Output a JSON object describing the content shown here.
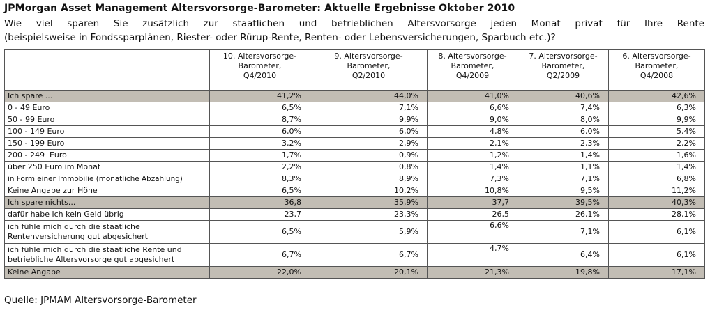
{
  "title": "JPMorgan Asset Management Altersvorsorge-Barometer: Aktuelle Ergebnisse Oktober 2010",
  "question_line1": "Wie viel sparen Sie zusätzlich zur staatlichen und betrieblichen Altersvorsorge jeden Monat privat für Ihre Rente",
  "question_line2": "(beispielsweise in Fondssparplänen, Riester- oder Rürup-Rente, Renten- oder Lebensversicherungen, Sparbuch etc.)?",
  "columns": [
    {
      "line1": "10. Altersvorsorge-",
      "line2": "Barometer,",
      "line3": "Q4/2010"
    },
    {
      "line1": "9. Altersvorsorge-",
      "line2": "Barometer,",
      "line3": "Q2/2010"
    },
    {
      "line1": "8. Altersvorsorge-",
      "line2": "Barometer,",
      "line3": "Q4/2009"
    },
    {
      "line1": "7. Altersvorsorge-",
      "line2": "Barometer,",
      "line3": "Q2/2009"
    },
    {
      "line1": "6. Altersvorsorge-",
      "line2": "Barometer,",
      "line3": "Q4/2008"
    }
  ],
  "rows": [
    {
      "label": "Ich spare ...",
      "values": [
        "41,2%",
        "44,0%",
        "41,0%",
        "40,6%",
        "42,6%"
      ]
    },
    {
      "label": "0 - 49 Euro",
      "values": [
        "6,5%",
        "7,1%",
        "6,6%",
        "7,4%",
        "6,3%"
      ]
    },
    {
      "label": "50 - 99 Euro",
      "values": [
        "8,7%",
        "9,9%",
        "9,0%",
        "8,0%",
        "9,9%"
      ]
    },
    {
      "label": "100 - 149 Euro",
      "values": [
        "6,0%",
        "6,0%",
        "4,8%",
        "6,0%",
        "5,4%"
      ]
    },
    {
      "label": "150 - 199 Euro",
      "values": [
        "3,2%",
        "2,9%",
        "2,1%",
        "2,3%",
        "2,2%"
      ]
    },
    {
      "label": "200 - 249  Euro",
      "values": [
        "1,7%",
        "0,9%",
        "1,2%",
        "1,4%",
        "1,6%"
      ]
    },
    {
      "label": "über 250 Euro im Monat",
      "values": [
        "2,2%",
        "0,8%",
        "1,4%",
        "1,1%",
        "1,4%"
      ]
    },
    {
      "label": "in Form einer Immobilie (monatliche Abzahlung)",
      "values": [
        "8,3%",
        "8,9%",
        "7,3%",
        "7,1%",
        "6,8%"
      ]
    },
    {
      "label": "Keine Angabe zur Höhe",
      "values": [
        "6,5%",
        "10,2%",
        "10,8%",
        "9,5%",
        "11,2%"
      ]
    },
    {
      "label": "Ich spare nichts...",
      "values": [
        "36,8",
        "35,9%",
        "37,7",
        "39,5%",
        "40,3%"
      ]
    },
    {
      "label": "dafür habe ich kein Geld übrig",
      "values": [
        "23,7",
        "23,3%",
        "26,5",
        "26,1%",
        "28,1%"
      ]
    },
    {
      "label": "ich fühle mich durch die staatliche Rentenversicherung gut abgesichert",
      "values": [
        "6,5%",
        "5,9%",
        "6,6%",
        "7,1%",
        "6,1%"
      ]
    },
    {
      "label": "ich fühle mich durch die staatliche Rente und betriebliche Altersvorsorge gut abgesichert",
      "values": [
        "6,7%",
        "6,7%",
        "4,7%",
        "6,4%",
        "6,1%"
      ]
    },
    {
      "label": "Keine Angabe",
      "values": [
        "22,0%",
        "20,1%",
        "21,3%",
        "19,8%",
        "17,1%"
      ]
    }
  ],
  "source": "Quelle: JPMAM Altersvorsorge-Barometer"
}
